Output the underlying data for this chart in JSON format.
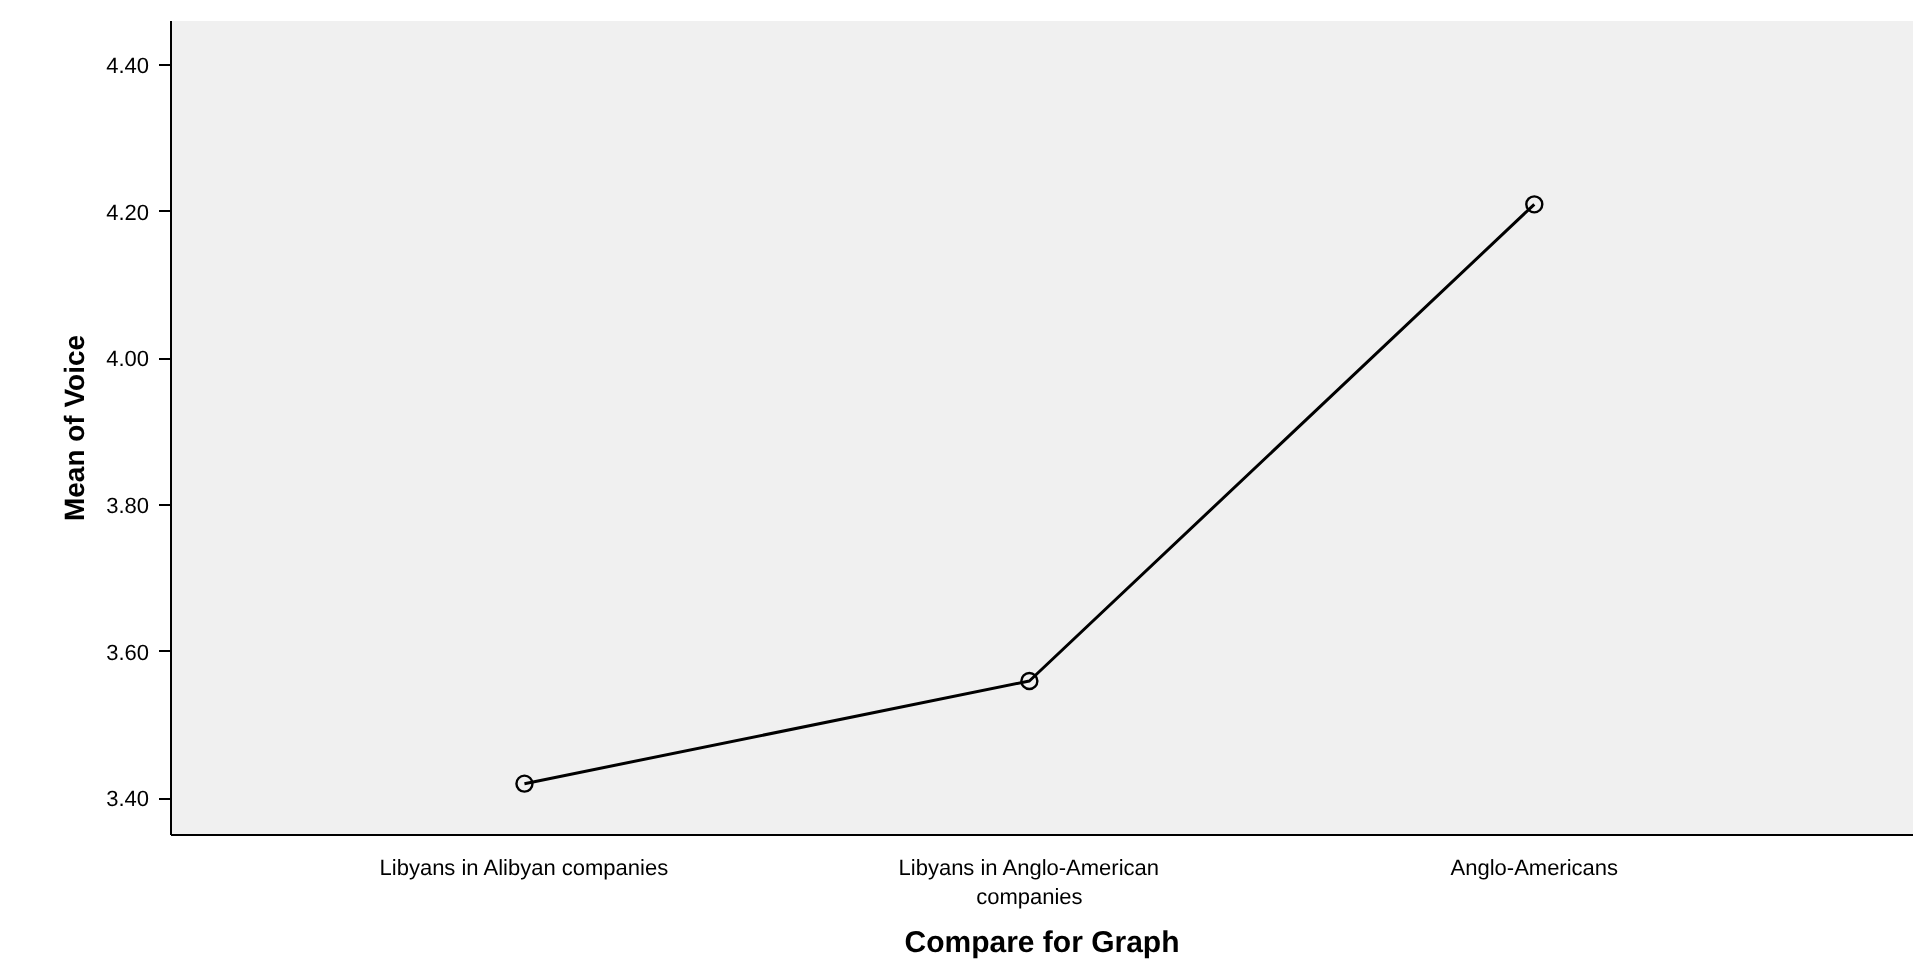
{
  "chart_data": {
    "type": "line",
    "xlabel": "Compare for Graph",
    "ylabel": "Mean of Voice",
    "categories": [
      "Libyans in Alibyan companies",
      "Libyans in Anglo-American companies",
      "Anglo-Americans"
    ],
    "series": [
      {
        "color": "#000000",
        "values": [
          3.42,
          3.56,
          4.21
        ]
      }
    ],
    "ylim": [
      3.35,
      4.46
    ],
    "yticks": [
      {
        "value": 3.4,
        "label": "3.40"
      },
      {
        "value": 3.6,
        "label": "3.60"
      },
      {
        "value": 3.8,
        "label": "3.80"
      },
      {
        "value": 4.0,
        "label": "4.00"
      },
      {
        "value": 4.2,
        "label": "4.20"
      },
      {
        "value": 4.4,
        "label": "4.40"
      }
    ],
    "grid": false,
    "marker": "circle",
    "line_style": "solid"
  }
}
